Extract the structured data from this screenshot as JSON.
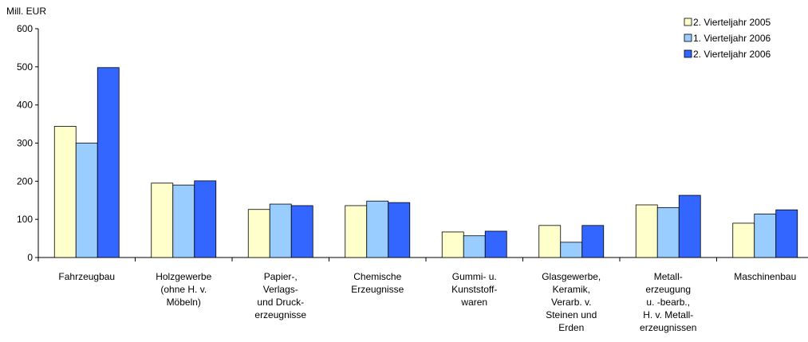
{
  "chart_data": {
    "type": "bar",
    "y_label": "Mill. EUR",
    "categories": [
      [
        "Fahrzeugbau"
      ],
      [
        "Holzgewerbe",
        "(ohne H. v.",
        "Möbeln)"
      ],
      [
        "Papier-,",
        "Verlags-",
        "und Druck-",
        "erzeugnisse"
      ],
      [
        "Chemische",
        "Erzeugnisse"
      ],
      [
        "Gummi- u.",
        "Kunststoff-",
        "waren"
      ],
      [
        "Glasgewerbe,",
        "Keramik,",
        "Verarb. v.",
        "Steinen und",
        "Erden"
      ],
      [
        "Metall-",
        "erzeugung",
        "u. -bearb.,",
        "H. v. Metall-",
        "erzeugnissen"
      ],
      [
        "Maschinenbau"
      ]
    ],
    "series": [
      {
        "name": "2. Vierteljahr 2005",
        "color": "#ffffcc",
        "values": [
          344,
          195,
          126,
          136,
          67,
          84,
          138,
          90
        ]
      },
      {
        "name": "1. Vierteljahr 2006",
        "color": "#99ccff",
        "values": [
          300,
          190,
          140,
          148,
          57,
          40,
          131,
          114
        ]
      },
      {
        "name": "2. Vierteljahr 2006",
        "color": "#3366ff",
        "values": [
          498,
          201,
          136,
          144,
          69,
          84,
          163,
          125
        ]
      }
    ],
    "ylim": [
      0,
      600
    ],
    "yticks": [
      0,
      100,
      200,
      300,
      400,
      500,
      600
    ],
    "legend": "top-right"
  }
}
